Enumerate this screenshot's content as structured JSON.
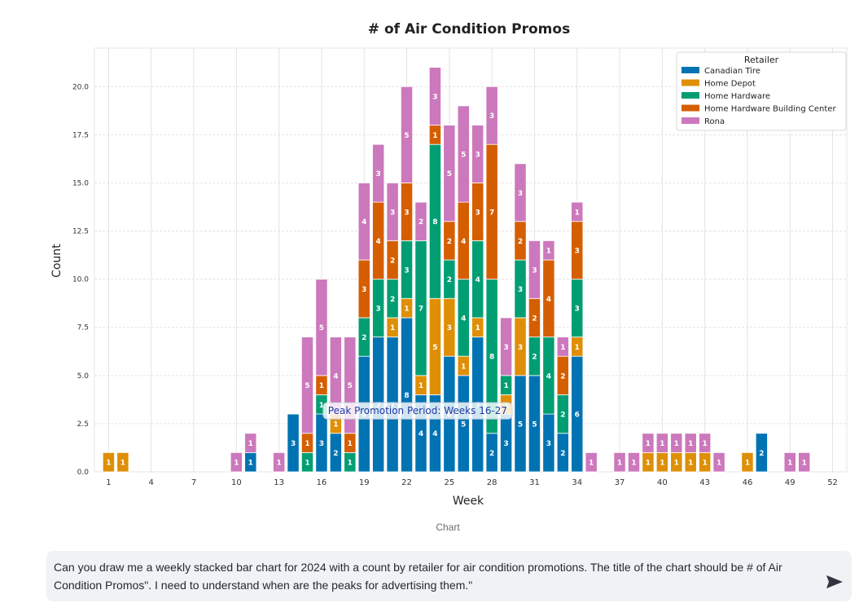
{
  "caption": "Chart",
  "prompt": {
    "text": "Can you draw me a weekly stacked bar chart for 2024 with a count by retailer for air condition promotions. The title of the chart should be # of Air Condition Promos\". I need to understand when are the peaks for advertising them.\"",
    "send_icon": "send-arrow-icon"
  },
  "chart_data": {
    "type": "bar",
    "stacked": true,
    "title": "# of Air Condition Promos",
    "xlabel": "Week",
    "ylabel": "Count",
    "xlim": [
      0,
      53
    ],
    "ylim": [
      0,
      22
    ],
    "x_ticks": [
      1,
      4,
      7,
      10,
      13,
      16,
      19,
      22,
      25,
      28,
      31,
      34,
      37,
      40,
      43,
      46,
      49,
      52
    ],
    "y_ticks": [
      0.0,
      2.5,
      5.0,
      7.5,
      10.0,
      12.5,
      15.0,
      17.5,
      20.0
    ],
    "y_tick_labels": [
      "0.0",
      "2.5",
      "5.0",
      "7.5",
      "10.0",
      "12.5",
      "15.0",
      "17.5",
      "20.0"
    ],
    "grid": true,
    "legend": {
      "title": "Retailer",
      "position": "top-right"
    },
    "annotation": {
      "text": "Peak Promotion Period: Weeks 16-27",
      "x": 16,
      "y": 3
    },
    "weeks": [
      1,
      2,
      10,
      11,
      13,
      14,
      15,
      16,
      17,
      18,
      19,
      20,
      21,
      22,
      23,
      24,
      25,
      26,
      27,
      28,
      29,
      30,
      31,
      32,
      33,
      34,
      35,
      37,
      38,
      39,
      40,
      41,
      42,
      43,
      44,
      46,
      47,
      49,
      50
    ],
    "series": [
      {
        "name": "Canadian Tire",
        "color": "#0173b2",
        "values": [
          0,
          0,
          0,
          1,
          0,
          3,
          0,
          3,
          2,
          0,
          6,
          7,
          7,
          8,
          4,
          4,
          6,
          5,
          7,
          2,
          3,
          5,
          5,
          3,
          2,
          6,
          0,
          0,
          0,
          0,
          0,
          0,
          0,
          0,
          0,
          0,
          2,
          0,
          0
        ]
      },
      {
        "name": "Home Depot",
        "color": "#de8f05",
        "values": [
          1,
          1,
          0,
          0,
          0,
          0,
          0,
          0,
          1,
          0,
          0,
          0,
          1,
          1,
          1,
          5,
          3,
          1,
          1,
          0,
          1,
          3,
          0,
          0,
          0,
          1,
          0,
          0,
          0,
          1,
          1,
          1,
          1,
          1,
          0,
          1,
          0,
          0,
          0
        ]
      },
      {
        "name": "Home Hardware",
        "color": "#029e73",
        "values": [
          0,
          0,
          0,
          0,
          0,
          0,
          1,
          1,
          0,
          1,
          2,
          3,
          2,
          3,
          7,
          8,
          2,
          4,
          4,
          8,
          1,
          3,
          2,
          4,
          2,
          3,
          0,
          0,
          0,
          0,
          0,
          0,
          0,
          0,
          0,
          0,
          0,
          0,
          0
        ]
      },
      {
        "name": "Home Hardware Building Center",
        "color": "#d55e00",
        "values": [
          0,
          0,
          0,
          0,
          0,
          0,
          1,
          1,
          0,
          1,
          3,
          4,
          2,
          3,
          0,
          1,
          2,
          4,
          3,
          7,
          0,
          2,
          2,
          4,
          2,
          3,
          0,
          0,
          0,
          0,
          0,
          0,
          0,
          0,
          0,
          0,
          0,
          0,
          0
        ]
      },
      {
        "name": "Rona",
        "color": "#cc78bc",
        "values": [
          0,
          0,
          1,
          1,
          1,
          0,
          5,
          5,
          4,
          5,
          4,
          3,
          3,
          5,
          2,
          3,
          5,
          5,
          3,
          3,
          3,
          3,
          3,
          1,
          1,
          1,
          1,
          1,
          1,
          1,
          1,
          1,
          1,
          1,
          1,
          0,
          0,
          1,
          1
        ]
      }
    ]
  }
}
